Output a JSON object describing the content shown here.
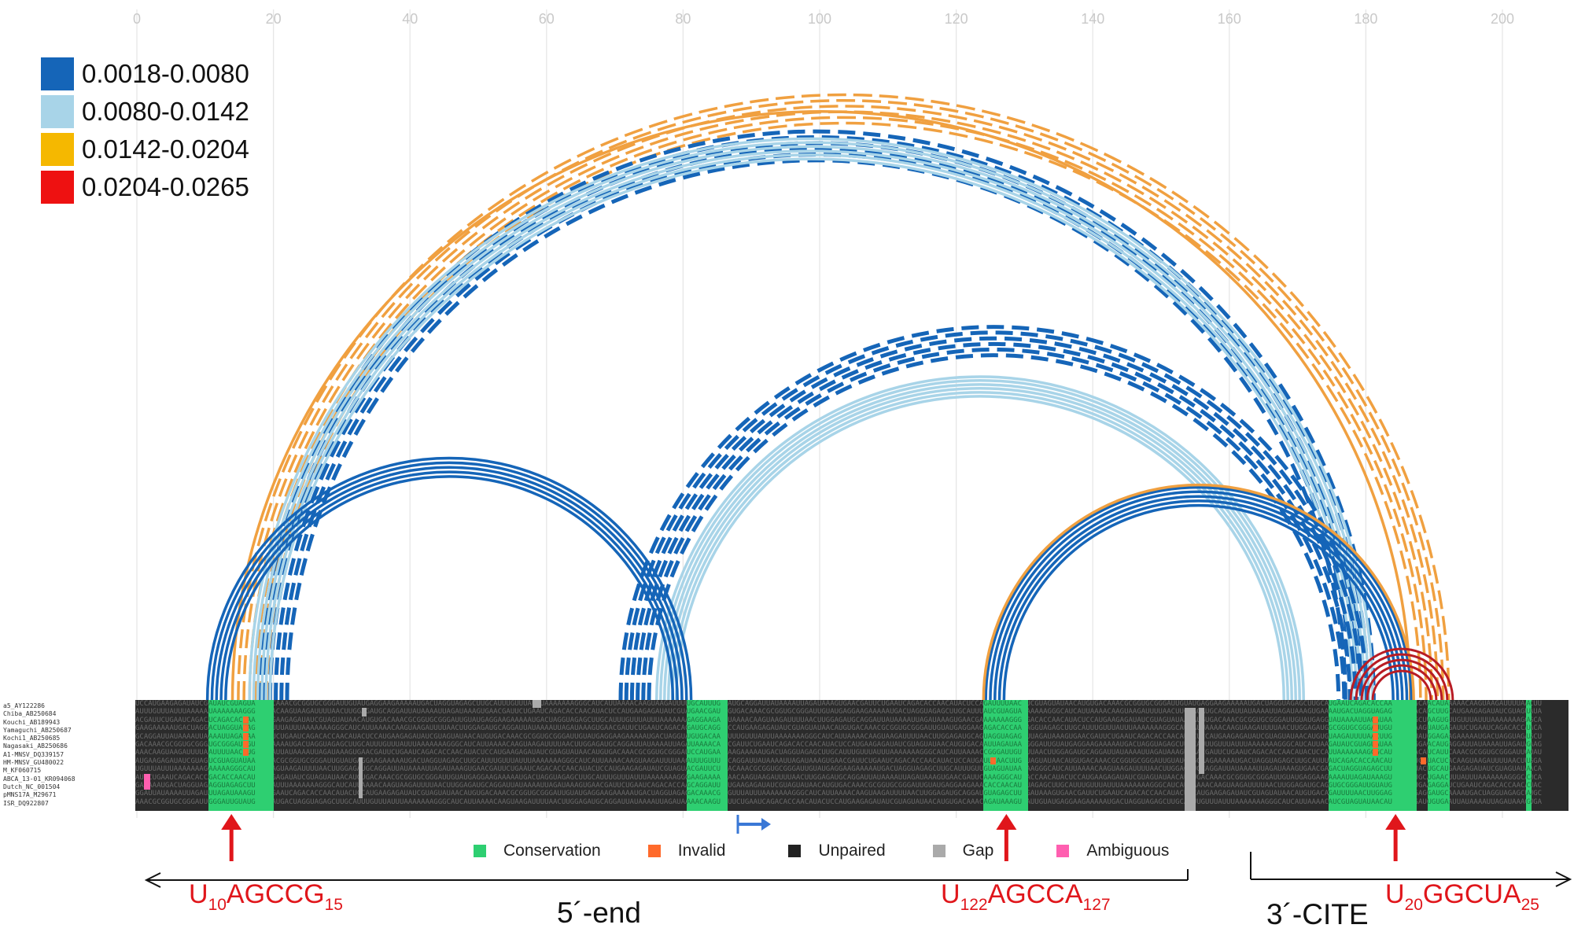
{
  "legend": [
    {
      "range": "0.0018-0.0080",
      "color": "#1565b8"
    },
    {
      "range": "0.0080-0.0142",
      "color": "#a8d4e8"
    },
    {
      "range": "0.0142-0.0204",
      "color": "#f0a040"
    },
    {
      "range": "0.0204-0.0265",
      "color": "#e01010"
    }
  ],
  "axis_ticks": [
    "0",
    "20",
    "40",
    "60",
    "80",
    "100",
    "120",
    "140",
    "160",
    "180",
    "200"
  ],
  "sequences": [
    "a5_AY122286",
    "Chiba_AB250684",
    "Kouchi_AB189943",
    "Yamaguchi_AB250687",
    "Kochi1_AB250685",
    "Nagasaki_AB250686",
    "A1-MNSV_DQ339157",
    "HM-MNSV_GU480022",
    "M_KF060715",
    "ABCA_13-01_KR094068",
    "Dutch_NC_001504",
    "pMNS17A_M29671",
    "ISR_DQ922807"
  ],
  "status_legend": [
    {
      "label": "Conservation",
      "color": "#2ecf71"
    },
    {
      "label": "Invalid",
      "color": "#ff6a2b"
    },
    {
      "label": "Unpaired",
      "color": "#222222"
    },
    {
      "label": "Gap",
      "color": "#aaaaaa"
    },
    {
      "label": "Ambiguous",
      "color": "#ff5fb0"
    }
  ],
  "motifs": [
    {
      "base": "U",
      "start": "10",
      "mid": "AGCCG",
      "end": "15"
    },
    {
      "base": "U",
      "start": "122",
      "mid": "AGCCA",
      "end": "127"
    },
    {
      "base": "U",
      "start": "20",
      "mid": "GGCUA",
      "end": "25"
    }
  ],
  "regions": {
    "five_prime": "5´-end",
    "three_prime": "3´-CITE"
  },
  "colors": {
    "arrow": "#e0161b",
    "start_arrow": "#3a78d6",
    "grid": "#e6e6e6"
  }
}
